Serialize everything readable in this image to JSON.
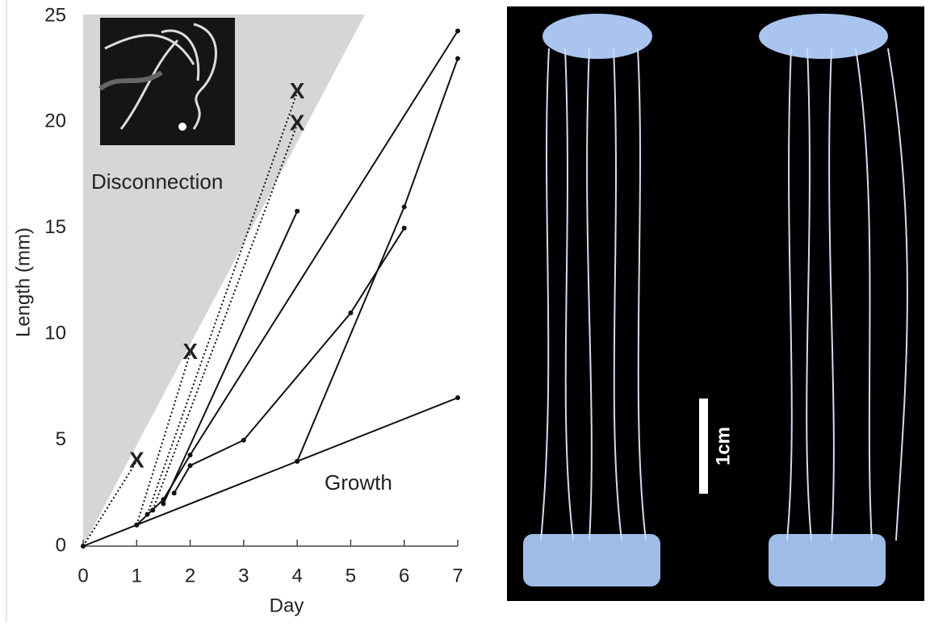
{
  "chart_data": {
    "type": "line",
    "x_label": "Day",
    "y_label": "Length (mm)",
    "xlim": [
      0,
      7
    ],
    "ylim": [
      0,
      25
    ],
    "xticks": [
      0,
      1,
      2,
      3,
      4,
      5,
      6,
      7
    ],
    "yticks": [
      0,
      5,
      10,
      15,
      20,
      25
    ],
    "end_marker": "X",
    "series": [
      {
        "color": "#111111",
        "dashed": false,
        "x": [
          0,
          1,
          4,
          7
        ],
        "values": [
          0,
          1,
          4,
          7
        ]
      },
      {
        "color": "#111111",
        "dashed": false,
        "x": [
          1,
          1.5,
          2,
          7
        ],
        "values": [
          1,
          2.2,
          4.3,
          24.3
        ]
      },
      {
        "color": "#111111",
        "dashed": false,
        "x": [
          1.5,
          4
        ],
        "values": [
          2,
          15.8
        ]
      },
      {
        "color": "#111111",
        "dashed": false,
        "x": [
          1.7,
          2,
          3,
          5,
          6
        ],
        "values": [
          2.5,
          3.8,
          5,
          11,
          15
        ]
      },
      {
        "color": "#111111",
        "dashed": false,
        "x": [
          4,
          6,
          7
        ],
        "values": [
          4,
          16,
          23
        ]
      },
      {
        "color": "#111111",
        "dashed": true,
        "x": [
          0,
          1
        ],
        "values": [
          0,
          4
        ]
      },
      {
        "color": "#111111",
        "dashed": true,
        "x": [
          1,
          2
        ],
        "values": [
          1,
          9.1
        ]
      },
      {
        "color": "#111111",
        "dashed": true,
        "x": [
          1.2,
          4
        ],
        "values": [
          1.5,
          21.4
        ]
      },
      {
        "color": "#111111",
        "dashed": true,
        "x": [
          1.3,
          4
        ],
        "values": [
          1.7,
          19.9
        ]
      }
    ],
    "annotations": [
      "Disconnection",
      "Growth"
    ],
    "scale_bar_label": "1cm"
  }
}
